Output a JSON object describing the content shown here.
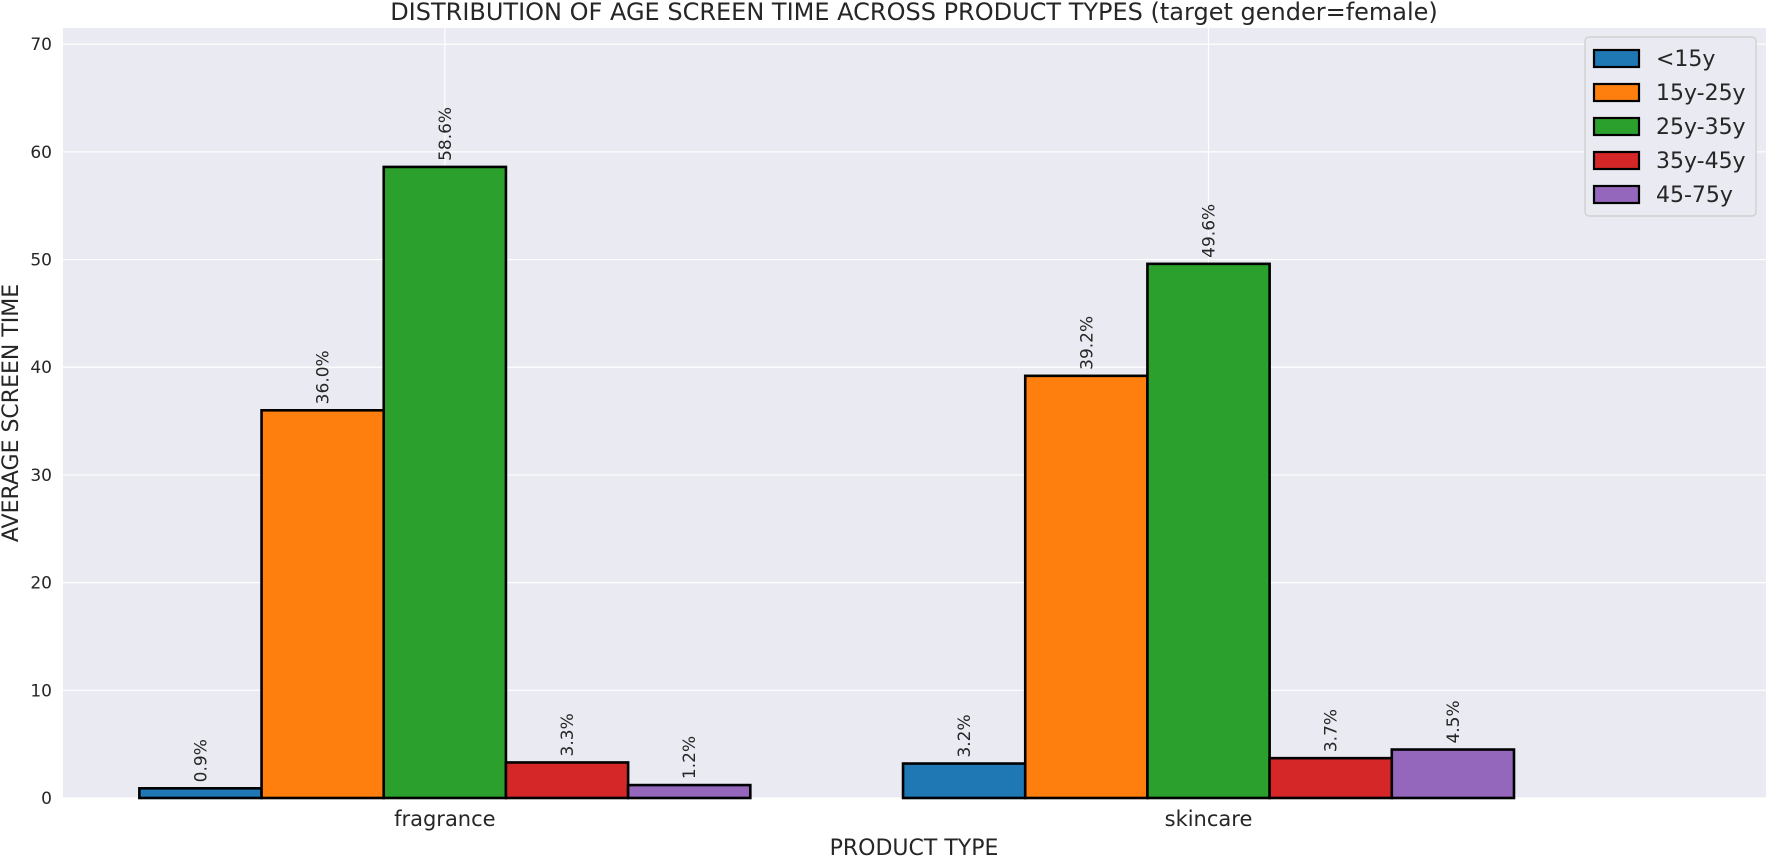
{
  "chart_data": {
    "type": "bar",
    "title": "DISTRIBUTION OF AGE SCREEN TIME ACROSS PRODUCT TYPES (target gender=female)",
    "xlabel": "PRODUCT TYPE",
    "ylabel": "AVERAGE SCREEN TIME",
    "categories": [
      "fragrance",
      "skincare"
    ],
    "ylim": [
      0,
      71.5
    ],
    "yticks": [
      0,
      10,
      20,
      30,
      40,
      50,
      60,
      70
    ],
    "grid": true,
    "legend_position": "top-right",
    "series": [
      {
        "name": "<15y",
        "values": [
          0.9,
          3.2
        ],
        "labels": [
          "0.9%",
          "3.2%"
        ],
        "color": "#1f77b4"
      },
      {
        "name": "15y-25y",
        "values": [
          36.0,
          39.2
        ],
        "labels": [
          "36.0%",
          "39.2%"
        ],
        "color": "#ff7f0e"
      },
      {
        "name": "25y-35y",
        "values": [
          58.6,
          49.6
        ],
        "labels": [
          "58.6%",
          "49.6%"
        ],
        "color": "#2ca02c"
      },
      {
        "name": "35y-45y",
        "values": [
          3.3,
          3.7
        ],
        "labels": [
          "3.3%",
          "3.7%"
        ],
        "color": "#d62728"
      },
      {
        "name": "45-75y",
        "values": [
          1.2,
          4.5
        ],
        "labels": [
          "1.2%",
          "4.5%"
        ],
        "color": "#9467bd"
      }
    ]
  }
}
